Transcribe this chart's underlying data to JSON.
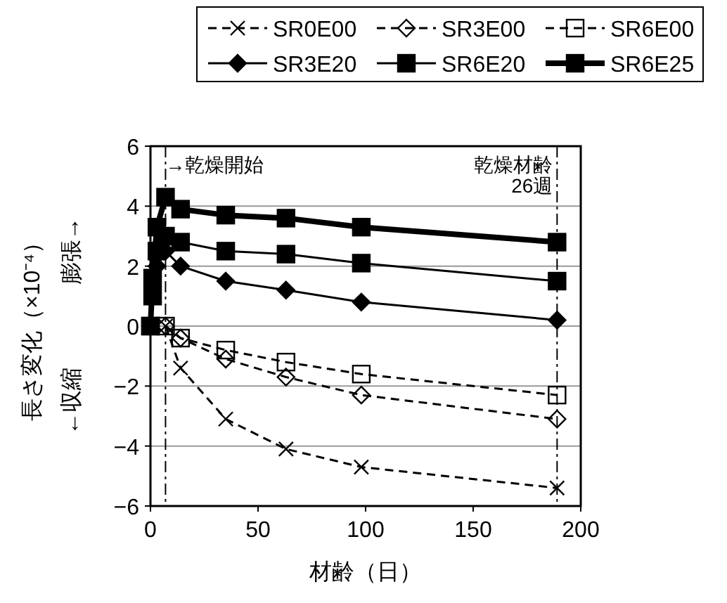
{
  "chart_data": {
    "type": "line",
    "xlabel": "材齢（日）",
    "ylabel": "長さ変化（×10⁻⁴）",
    "annotations": [
      "膨張→",
      "←収縮"
    ],
    "xlim": [
      0,
      200
    ],
    "ylim": [
      -6,
      6
    ],
    "xticks": [
      0,
      50,
      100,
      150,
      200
    ],
    "yticks": [
      -6,
      -4,
      -2,
      0,
      2,
      4,
      6
    ],
    "grid": "y",
    "legend": "top",
    "ref_lines": [
      {
        "axis": "x",
        "value": 7,
        "label": "→乾燥開始",
        "line_style": "dashdot"
      },
      {
        "axis": "x",
        "value": 189,
        "label": "乾燥材齢\n26週",
        "line_style": "dashdot"
      }
    ],
    "series": [
      {
        "name": "SR0E00",
        "color": "#000000",
        "marker": "cross",
        "line_style": "dashed",
        "x": [
          7,
          14,
          35,
          63,
          98,
          189
        ],
        "values": [
          0,
          -1.4,
          -3.1,
          -4.1,
          -4.7,
          -5.4
        ]
      },
      {
        "name": "SR3E00",
        "color": "#000000",
        "marker": "diamond",
        "line_style": "dashed",
        "x": [
          7,
          14,
          35,
          63,
          98,
          189
        ],
        "values": [
          0,
          -0.4,
          -1.1,
          -1.7,
          -2.3,
          -3.1
        ]
      },
      {
        "name": "SR6E00",
        "color": "#000000",
        "marker": "square",
        "line_style": "dashed",
        "x": [
          7,
          14,
          35,
          63,
          98,
          189
        ],
        "values": [
          0,
          -0.4,
          -0.8,
          -1.2,
          -1.6,
          -2.3
        ]
      },
      {
        "name": "SR3E20",
        "color": "#000000",
        "marker": "diamond",
        "line_style": "solid",
        "x": [
          0,
          3,
          7,
          14,
          35,
          63,
          98,
          189
        ],
        "values": [
          0,
          2.0,
          2.5,
          2.0,
          1.5,
          1.2,
          0.8,
          0.2
        ]
      },
      {
        "name": "SR6E20",
        "color": "#000000",
        "marker": "square",
        "line_style": "solid",
        "x": [
          0,
          1,
          3,
          7,
          14,
          35,
          63,
          98,
          189
        ],
        "values": [
          0,
          1.0,
          2.5,
          3.0,
          2.8,
          2.5,
          2.4,
          2.1,
          1.5
        ]
      },
      {
        "name": "SR6E25",
        "color": "#000000",
        "marker": "square",
        "line_style": "solid",
        "x": [
          0,
          1,
          3,
          7,
          14,
          35,
          63,
          98,
          189
        ],
        "values": [
          0,
          1.6,
          3.3,
          4.3,
          3.9,
          3.7,
          3.6,
          3.3,
          2.8
        ]
      }
    ]
  }
}
